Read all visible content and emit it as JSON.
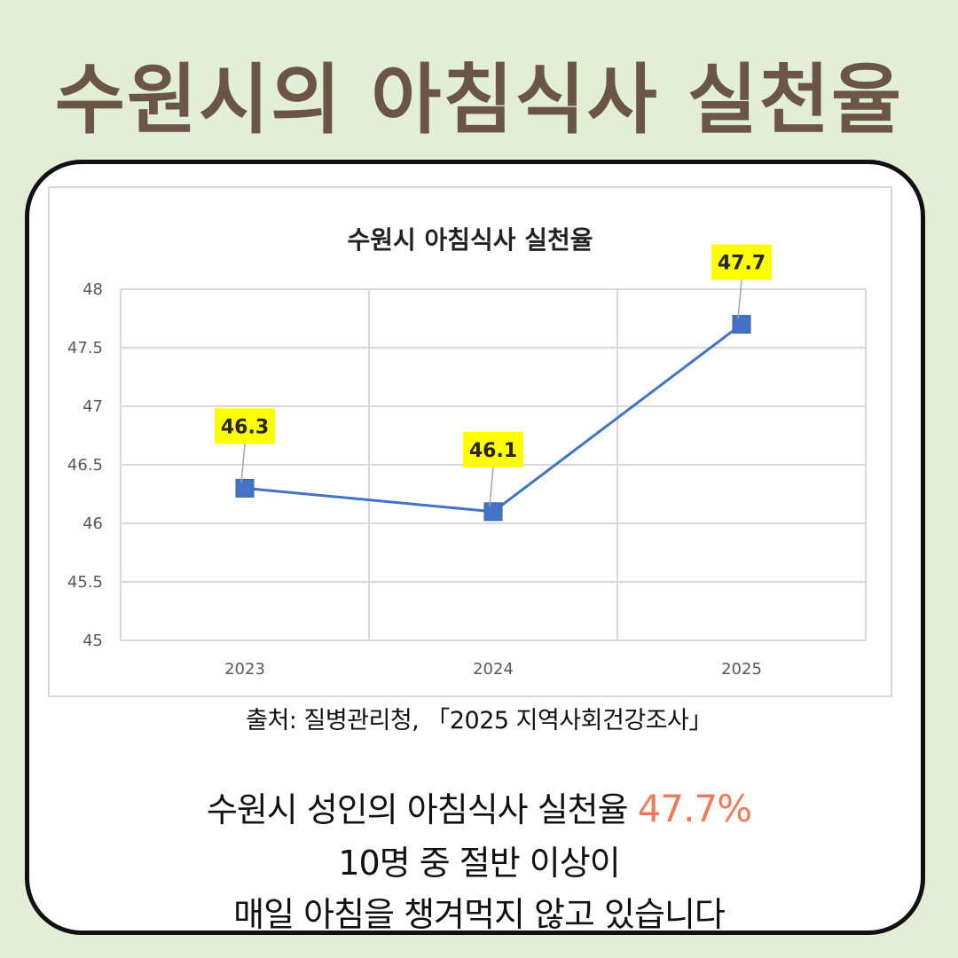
{
  "title": "수원시의 아침식사 실천율",
  "source": "출처: 질병관리청, 「2025 지역사회건강조사」",
  "description": {
    "line1_prefix": "수원시 성인의 아침식사 실천율 ",
    "line1_highlight": "47.7%",
    "line2": "10명 중 절반 이상이",
    "line3": "매일 아침을 챙겨먹지 않고 있습니다"
  },
  "colors": {
    "background": "#e2efd6",
    "title": "#6b5645",
    "line": "#4472c4",
    "label_bg": "#ffff00",
    "highlight": "#f07a5b"
  },
  "chart_data": {
    "type": "line",
    "title": "수원시 아침식사 실천율",
    "categories": [
      "2023",
      "2024",
      "2025"
    ],
    "series": [
      {
        "values": [
          46.3,
          46.1,
          47.7
        ]
      }
    ],
    "data_labels": [
      "46.3",
      "46.1",
      "47.7"
    ],
    "y_ticks": [
      "48",
      "47.5",
      "47",
      "46.5",
      "46",
      "45.5",
      "45"
    ],
    "ylim": [
      45,
      48
    ],
    "grid": true,
    "marker": "square",
    "legend": "none"
  }
}
